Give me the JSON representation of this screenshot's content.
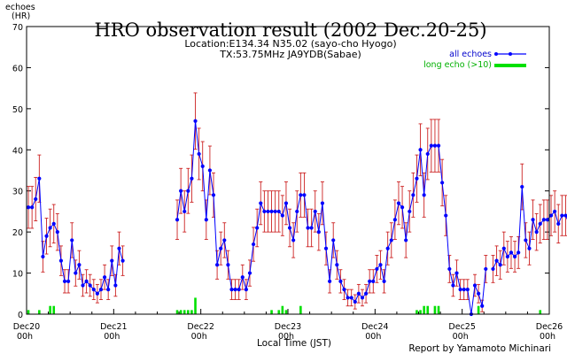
{
  "chart_data": {
    "type": "line",
    "title": "HRO observation result (2002 Dec.20-25)",
    "subtitle_lines": [
      "Location:E134.34 N35.02 (sayo-cho Hyogo)",
      "TX:53.75MHz JA9YDB(Sabae)"
    ],
    "ylabel_lines": [
      "echoes",
      "(HR)"
    ],
    "xlabel": "Local Time (JST)",
    "credit": "Report by Yamamoto Michinari",
    "ylim": [
      0,
      70
    ],
    "yticks": [
      0,
      10,
      20,
      30,
      40,
      50,
      60,
      70
    ],
    "x_range_hours": [
      0,
      144
    ],
    "xticks": [
      {
        "hour": 0,
        "label": "Dec20",
        "sub": "00h"
      },
      {
        "hour": 24,
        "label": "Dec21",
        "sub": "00h"
      },
      {
        "hour": 48,
        "label": "Dec22",
        "sub": "00h"
      },
      {
        "hour": 72,
        "label": "Dec23",
        "sub": "00h"
      },
      {
        "hour": 96,
        "label": "Dec24",
        "sub": "00h"
      },
      {
        "hour": 120,
        "label": "Dec25",
        "sub": "00h"
      },
      {
        "hour": 144,
        "label": "Dec26",
        "sub": "00h"
      }
    ],
    "grid": false,
    "legend_position": "top-right",
    "series": [
      {
        "name": "all echoes",
        "color": "#0000ff",
        "error_color": "#cc2222",
        "values": [
          26,
          26,
          28,
          33,
          14,
          19,
          21,
          22,
          20,
          13,
          8,
          8,
          18,
          10,
          12,
          7,
          8,
          7,
          6,
          5,
          6,
          9,
          6,
          13,
          7,
          16,
          13,
          null,
          null,
          null,
          null,
          null,
          null,
          null,
          null,
          null,
          null,
          null,
          null,
          null,
          null,
          23,
          30,
          25,
          30,
          33,
          47,
          39,
          36,
          23,
          35,
          29,
          12,
          16,
          18,
          12,
          6,
          6,
          6,
          9,
          6,
          10,
          17,
          21,
          27,
          25,
          25,
          25,
          25,
          25,
          24,
          27,
          21,
          18,
          25,
          29,
          29,
          21,
          21,
          25,
          20,
          27,
          16,
          8,
          18,
          12,
          8,
          6,
          4,
          4,
          3,
          5,
          4,
          5,
          8,
          8,
          11,
          12,
          8,
          16,
          18,
          23,
          27,
          26,
          18,
          25,
          29,
          33,
          40,
          29,
          39,
          41,
          41,
          41,
          32,
          24,
          11,
          7,
          10,
          6,
          6,
          6,
          0,
          7,
          5,
          2,
          11,
          null,
          11,
          13,
          12,
          16,
          14,
          15,
          14,
          15,
          31,
          18,
          16,
          23,
          20,
          22,
          23,
          23,
          24,
          25,
          22,
          24,
          24,
          22,
          19,
          19,
          11,
          12,
          6,
          8,
          3,
          5,
          10,
          4,
          5,
          8,
          10,
          10,
          15,
          17,
          13,
          19,
          20,
          16,
          25,
          21,
          17,
          20,
          15,
          21,
          21,
          22,
          26,
          22,
          16,
          16,
          9,
          4,
          5,
          2,
          5,
          4,
          9,
          7,
          8,
          13,
          15,
          19,
          20
        ]
      },
      {
        "name": "long echo (>10)",
        "color": "#00e000",
        "values": [
          1,
          0,
          0,
          1,
          0,
          0,
          2,
          2,
          0,
          0,
          0,
          0,
          0,
          0,
          0,
          0,
          0,
          0,
          0,
          0,
          0,
          0,
          0,
          0,
          0,
          0,
          0,
          null,
          null,
          null,
          null,
          null,
          null,
          null,
          null,
          null,
          null,
          null,
          null,
          null,
          null,
          1,
          1,
          1,
          1,
          1,
          4,
          0,
          0,
          0,
          0,
          0,
          0,
          0,
          0,
          0,
          0,
          0,
          0,
          0,
          0,
          0,
          0,
          0,
          0,
          0,
          0,
          1,
          0,
          1,
          2,
          1,
          0,
          0,
          0,
          2,
          0,
          0,
          0,
          0,
          0,
          0,
          0,
          0,
          0,
          0,
          0,
          0,
          0,
          0,
          0,
          0,
          0,
          0,
          0,
          0,
          0,
          0,
          0,
          0,
          0,
          0,
          0,
          0,
          0,
          0,
          0,
          1,
          1,
          2,
          2,
          0,
          2,
          2,
          0,
          0,
          0,
          0,
          0,
          0,
          0,
          0,
          0,
          0,
          2,
          0,
          0,
          0,
          0,
          null,
          0,
          0,
          0,
          0,
          0,
          0,
          0,
          0,
          0,
          0,
          0,
          1,
          0,
          0,
          0,
          0,
          0,
          0,
          0,
          0,
          0,
          0,
          0,
          0,
          0,
          0,
          1,
          0,
          0,
          0,
          0,
          0,
          0,
          0,
          0,
          0,
          0,
          0,
          0,
          0,
          0,
          0,
          0,
          0,
          0,
          0,
          0,
          0,
          0,
          0,
          0,
          0,
          0,
          0,
          0,
          0,
          0,
          0,
          0,
          0,
          0,
          0,
          0,
          0,
          0,
          1
        ]
      }
    ]
  }
}
